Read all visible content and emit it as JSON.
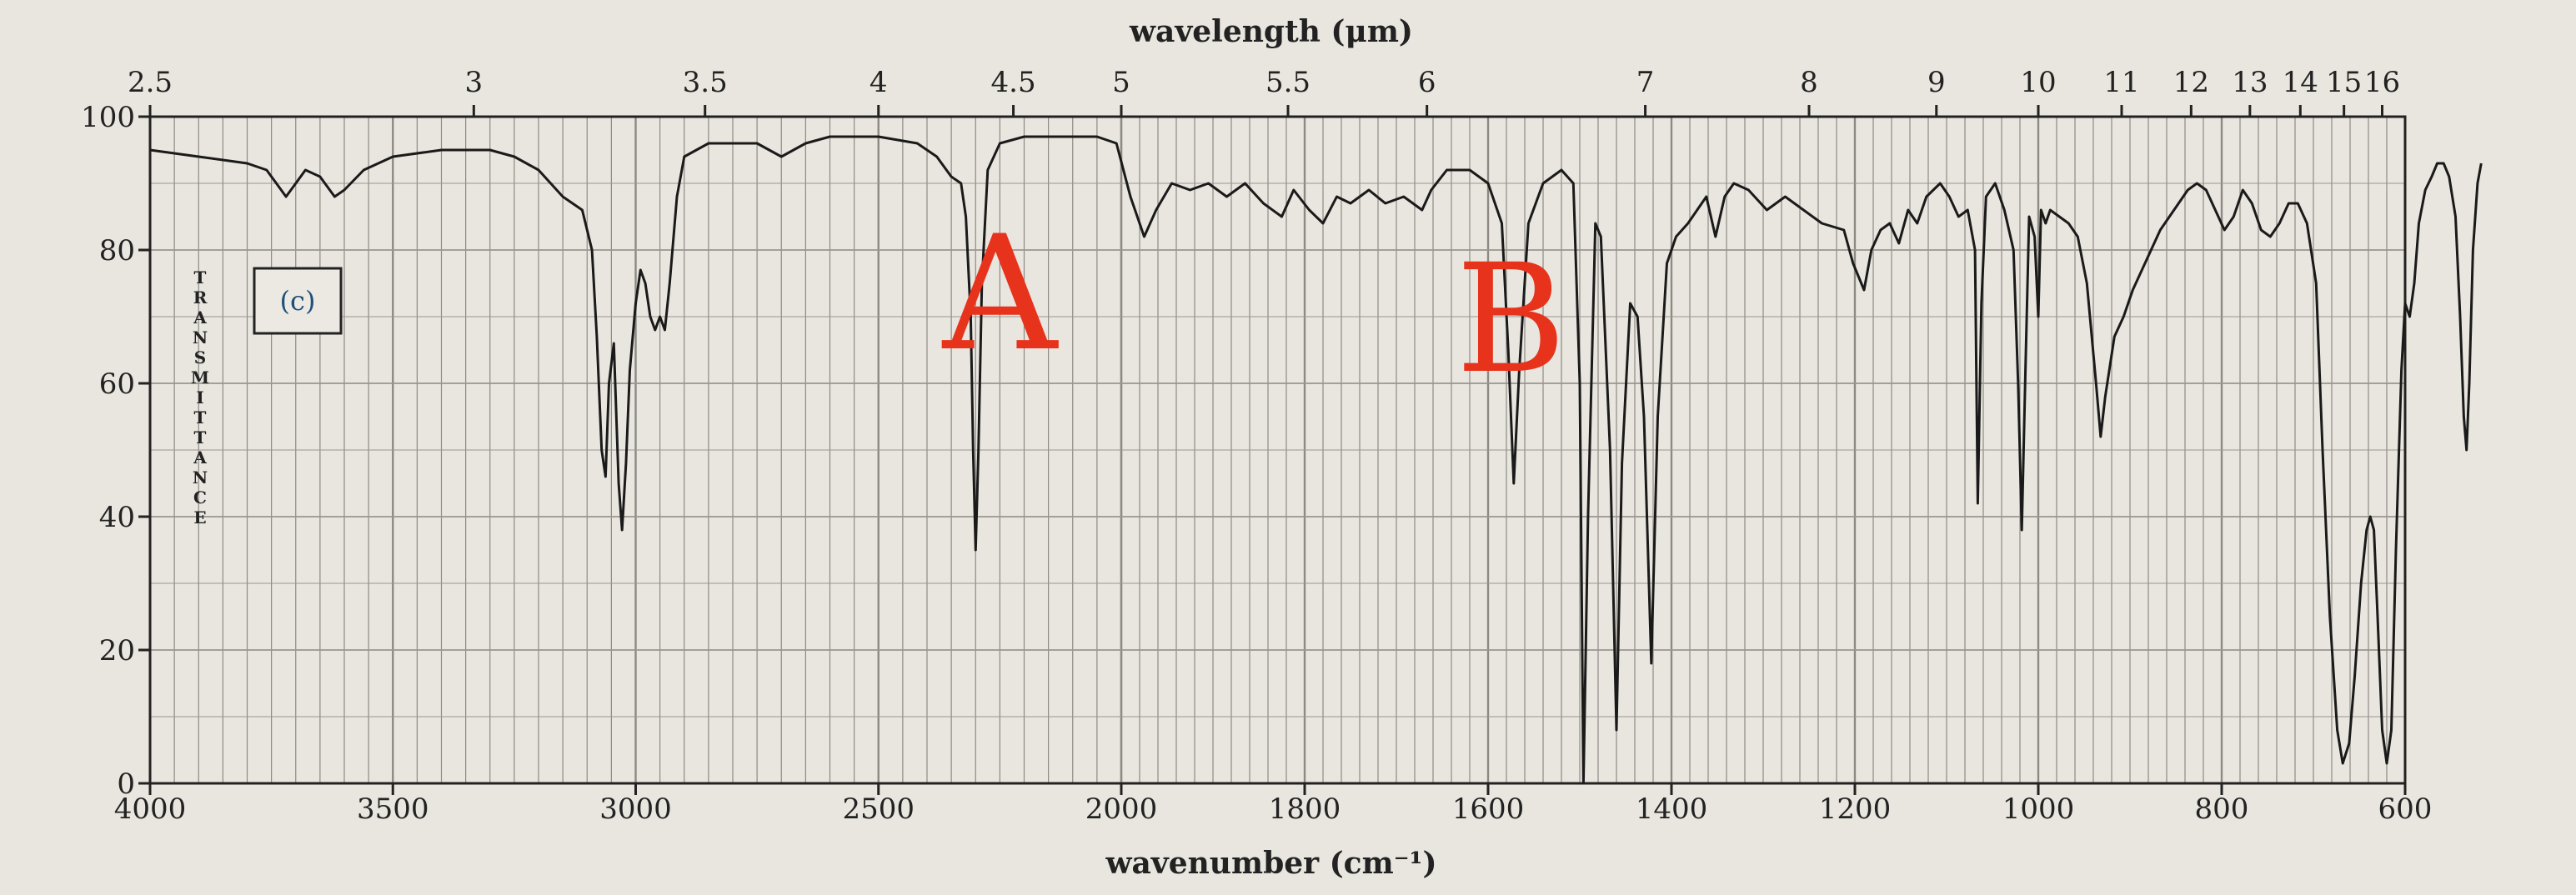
{
  "chart_data": {
    "type": "line",
    "title": "",
    "top_axis_label": "wavelength (μm)",
    "xlabel": "wavenumber (cm⁻¹)",
    "ylabel": "TRANSMITTANCE",
    "panel_label": "(c)",
    "x_ticks": [
      "4000",
      "3500",
      "3000",
      "2500",
      "2000",
      "1800",
      "1600",
      "1400",
      "1200",
      "1000",
      "800",
      "600"
    ],
    "x_tick_values": [
      4000,
      3500,
      3000,
      2500,
      2000,
      1800,
      1600,
      1400,
      1200,
      1000,
      800,
      600
    ],
    "top_ticks": [
      "2.5",
      "3",
      "3.5",
      "4",
      "4.5",
      "5",
      "5.5",
      "6",
      "7",
      "8",
      "9",
      "10",
      "11",
      "12",
      "13",
      "14",
      "15",
      "16"
    ],
    "top_tick_values": [
      2.5,
      3,
      3.5,
      4,
      4.5,
      5,
      5.5,
      6,
      7,
      8,
      9,
      10,
      11,
      12,
      13,
      14,
      15,
      16
    ],
    "y_ticks": [
      "0",
      "20",
      "40",
      "60",
      "80",
      "100"
    ],
    "ylim": [
      0,
      100
    ],
    "x_scale": "split: 4000-2000 and 2000-600 cm⁻¹ segments with different scale",
    "grid": true,
    "annotations": [
      {
        "text": "A",
        "x": 2250,
        "y": 74,
        "color": "#e8331c"
      },
      {
        "text": "B",
        "x": 1575,
        "y": 70,
        "color": "#e8331c"
      }
    ],
    "series": [
      {
        "points": [
          [
            4000,
            95
          ],
          [
            3900,
            94
          ],
          [
            3800,
            93
          ],
          [
            3760,
            92
          ],
          [
            3740,
            90
          ],
          [
            3720,
            88
          ],
          [
            3700,
            90
          ],
          [
            3680,
            92
          ],
          [
            3650,
            91
          ],
          [
            3620,
            88
          ],
          [
            3600,
            89
          ],
          [
            3560,
            92
          ],
          [
            3500,
            94
          ],
          [
            3400,
            95
          ],
          [
            3300,
            95
          ],
          [
            3250,
            94
          ],
          [
            3200,
            92
          ],
          [
            3150,
            88
          ],
          [
            3110,
            86
          ],
          [
            3090,
            80
          ],
          [
            3080,
            67
          ],
          [
            3070,
            50
          ],
          [
            3062,
            46
          ],
          [
            3055,
            60
          ],
          [
            3045,
            66
          ],
          [
            3035,
            45
          ],
          [
            3028,
            38
          ],
          [
            3020,
            48
          ],
          [
            3012,
            62
          ],
          [
            3000,
            72
          ],
          [
            2990,
            77
          ],
          [
            2980,
            75
          ],
          [
            2970,
            70
          ],
          [
            2960,
            68
          ],
          [
            2950,
            70
          ],
          [
            2940,
            68
          ],
          [
            2930,
            75
          ],
          [
            2915,
            88
          ],
          [
            2900,
            94
          ],
          [
            2850,
            96
          ],
          [
            2750,
            96
          ],
          [
            2700,
            94
          ],
          [
            2650,
            96
          ],
          [
            2600,
            97
          ],
          [
            2500,
            97
          ],
          [
            2420,
            96
          ],
          [
            2380,
            94
          ],
          [
            2350,
            91
          ],
          [
            2330,
            90
          ],
          [
            2320,
            85
          ],
          [
            2310,
            70
          ],
          [
            2305,
            50
          ],
          [
            2300,
            35
          ],
          [
            2294,
            50
          ],
          [
            2287,
            75
          ],
          [
            2275,
            92
          ],
          [
            2250,
            96
          ],
          [
            2200,
            97
          ],
          [
            2050,
            97
          ],
          [
            2010,
            96
          ],
          [
            1990,
            88
          ],
          [
            1975,
            82
          ],
          [
            1962,
            86
          ],
          [
            1945,
            90
          ],
          [
            1925,
            89
          ],
          [
            1905,
            90
          ],
          [
            1885,
            88
          ],
          [
            1865,
            90
          ],
          [
            1845,
            87
          ],
          [
            1825,
            85
          ],
          [
            1812,
            89
          ],
          [
            1795,
            86
          ],
          [
            1780,
            84
          ],
          [
            1765,
            88
          ],
          [
            1750,
            87
          ],
          [
            1730,
            89
          ],
          [
            1712,
            87
          ],
          [
            1692,
            88
          ],
          [
            1672,
            86
          ],
          [
            1662,
            89
          ],
          [
            1645,
            92
          ],
          [
            1620,
            92
          ],
          [
            1600,
            90
          ],
          [
            1585,
            84
          ],
          [
            1578,
            65
          ],
          [
            1572,
            45
          ],
          [
            1566,
            62
          ],
          [
            1556,
            84
          ],
          [
            1540,
            90
          ],
          [
            1520,
            92
          ],
          [
            1507,
            90
          ],
          [
            1500,
            60
          ],
          [
            1496,
            0
          ],
          [
            1491,
            40
          ],
          [
            1483,
            84
          ],
          [
            1477,
            82
          ],
          [
            1467,
            50
          ],
          [
            1460,
            8
          ],
          [
            1454,
            48
          ],
          [
            1445,
            72
          ],
          [
            1437,
            70
          ],
          [
            1430,
            55
          ],
          [
            1422,
            18
          ],
          [
            1415,
            55
          ],
          [
            1405,
            78
          ],
          [
            1395,
            82
          ],
          [
            1382,
            84
          ],
          [
            1372,
            86
          ],
          [
            1362,
            88
          ],
          [
            1352,
            82
          ],
          [
            1342,
            88
          ],
          [
            1332,
            90
          ],
          [
            1316,
            89
          ],
          [
            1296,
            86
          ],
          [
            1276,
            88
          ],
          [
            1256,
            86
          ],
          [
            1236,
            84
          ],
          [
            1212,
            83
          ],
          [
            1202,
            78
          ],
          [
            1190,
            74
          ],
          [
            1182,
            80
          ],
          [
            1172,
            83
          ],
          [
            1162,
            84
          ],
          [
            1152,
            81
          ],
          [
            1142,
            86
          ],
          [
            1132,
            84
          ],
          [
            1122,
            88
          ],
          [
            1107,
            90
          ],
          [
            1097,
            88
          ],
          [
            1087,
            85
          ],
          [
            1077,
            86
          ],
          [
            1069,
            80
          ],
          [
            1066,
            42
          ],
          [
            1062,
            72
          ],
          [
            1057,
            88
          ],
          [
            1047,
            90
          ],
          [
            1037,
            86
          ],
          [
            1027,
            80
          ],
          [
            1022,
            60
          ],
          [
            1018,
            38
          ],
          [
            1014,
            62
          ],
          [
            1010,
            85
          ],
          [
            1004,
            82
          ],
          [
            1000,
            70
          ],
          [
            997,
            86
          ],
          [
            992,
            84
          ],
          [
            987,
            86
          ],
          [
            977,
            85
          ],
          [
            967,
            84
          ],
          [
            957,
            82
          ],
          [
            947,
            75
          ],
          [
            937,
            60
          ],
          [
            932,
            52
          ],
          [
            927,
            58
          ],
          [
            917,
            67
          ],
          [
            907,
            70
          ],
          [
            897,
            74
          ],
          [
            887,
            77
          ],
          [
            877,
            80
          ],
          [
            867,
            83
          ],
          [
            857,
            85
          ],
          [
            847,
            87
          ],
          [
            837,
            89
          ],
          [
            827,
            90
          ],
          [
            817,
            89
          ],
          [
            807,
            86
          ],
          [
            797,
            83
          ],
          [
            787,
            85
          ],
          [
            777,
            89
          ],
          [
            767,
            87
          ],
          [
            757,
            83
          ],
          [
            747,
            82
          ],
          [
            737,
            84
          ],
          [
            727,
            87
          ],
          [
            717,
            87
          ],
          [
            707,
            84
          ],
          [
            697,
            75
          ],
          [
            690,
            50
          ],
          [
            682,
            25
          ],
          [
            674,
            8
          ],
          [
            668,
            3
          ],
          [
            661,
            6
          ],
          [
            655,
            16
          ],
          [
            648,
            30
          ],
          [
            642,
            38
          ],
          [
            638,
            40
          ],
          [
            634,
            38
          ],
          [
            630,
            25
          ],
          [
            625,
            8
          ],
          [
            620,
            3
          ],
          [
            615,
            8
          ],
          [
            610,
            35
          ],
          [
            604,
            62
          ],
          [
            600,
            72
          ],
          [
            595,
            70
          ],
          [
            590,
            75
          ],
          [
            585,
            84
          ],
          [
            578,
            89
          ],
          [
            571,
            91
          ],
          [
            565,
            93
          ],
          [
            558,
            93
          ],
          [
            552,
            91
          ],
          [
            545,
            85
          ],
          [
            540,
            70
          ],
          [
            536,
            55
          ],
          [
            533,
            50
          ],
          [
            530,
            60
          ],
          [
            526,
            80
          ],
          [
            521,
            90
          ],
          [
            517,
            93
          ]
        ]
      }
    ]
  }
}
